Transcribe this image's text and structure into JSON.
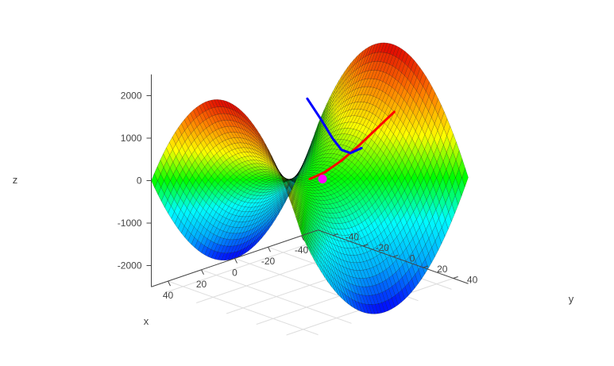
{
  "chart_data": {
    "type": "surface3d",
    "surface": "saddle z = x^2 - y^2",
    "x_range": [
      -50,
      50
    ],
    "y_range": [
      -50,
      50
    ],
    "z_range": [
      -2500,
      2500
    ],
    "axes": {
      "x": {
        "label": "x",
        "ticks": [
          40,
          20,
          0,
          -20,
          -40
        ]
      },
      "y": {
        "label": "y",
        "ticks": [
          -40,
          -20,
          0,
          20,
          40
        ]
      },
      "z": {
        "label": "z",
        "ticks": [
          2000,
          1000,
          0,
          -1000,
          -2000
        ]
      }
    },
    "colorscale": [
      "#0000ff",
      "#00a8ff",
      "#00ffff",
      "#00ff00",
      "#ffff00",
      "#ff8000",
      "#e00000"
    ],
    "grid": true,
    "traces": [
      {
        "name": "",
        "color": "#ff0000",
        "kind": "descent path on surface",
        "points": [
          [
            0,
            0,
            0
          ],
          [
            -8,
            1,
            64
          ],
          [
            -16,
            3,
            250
          ],
          [
            -24,
            6,
            540
          ],
          [
            -32,
            10,
            920
          ],
          [
            -38,
            14,
            1250
          ]
        ]
      },
      {
        "name": "",
        "color": "#0000ff",
        "kind": "path above surface",
        "points": [
          [
            -30,
            -35,
            1050
          ],
          [
            -25,
            -20,
            800
          ],
          [
            -18,
            -5,
            660
          ],
          [
            -10,
            10,
            680
          ],
          [
            -2,
            25,
            900
          ],
          [
            5,
            40,
            1300
          ]
        ]
      }
    ],
    "marker": {
      "color": "#ff00ff",
      "point": [
        0,
        0,
        0
      ]
    }
  }
}
